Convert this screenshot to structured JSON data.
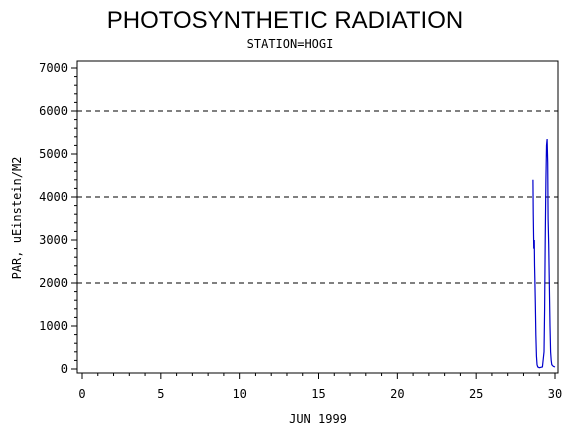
{
  "chart_data": {
    "type": "line",
    "title": "PHOTOSYNTHETIC RADIATION",
    "subtitle": "STATION=HOGI",
    "xlabel": "JUN 1999",
    "ylabel": "PAR, uEinstein/M2",
    "xlim": [
      0,
      30
    ],
    "ylim": [
      0,
      7000
    ],
    "xticks": [
      0,
      5,
      10,
      15,
      20,
      25,
      30
    ],
    "yticks": [
      0,
      1000,
      2000,
      3000,
      4000,
      5000,
      6000,
      7000
    ],
    "reference_lines": [
      2000,
      4000,
      6000
    ],
    "line_color": "#0000cc",
    "series": [
      {
        "x": [
          28.6,
          28.62,
          28.65,
          28.68,
          28.7,
          28.72,
          28.75,
          28.78,
          28.82,
          28.86,
          28.9,
          29.0,
          29.2,
          29.3,
          29.34,
          29.38,
          29.42,
          29.46,
          29.5,
          29.54,
          29.56,
          29.6,
          29.64,
          29.68,
          29.72,
          29.76,
          29.8,
          29.9,
          30.0
        ],
        "y": [
          4400,
          3600,
          2800,
          3000,
          2400,
          2100,
          1500,
          800,
          300,
          100,
          50,
          30,
          50,
          400,
          1400,
          3000,
          4400,
          5200,
          5350,
          4800,
          3500,
          2900,
          2000,
          1000,
          400,
          200,
          100,
          60,
          50
        ]
      }
    ]
  }
}
